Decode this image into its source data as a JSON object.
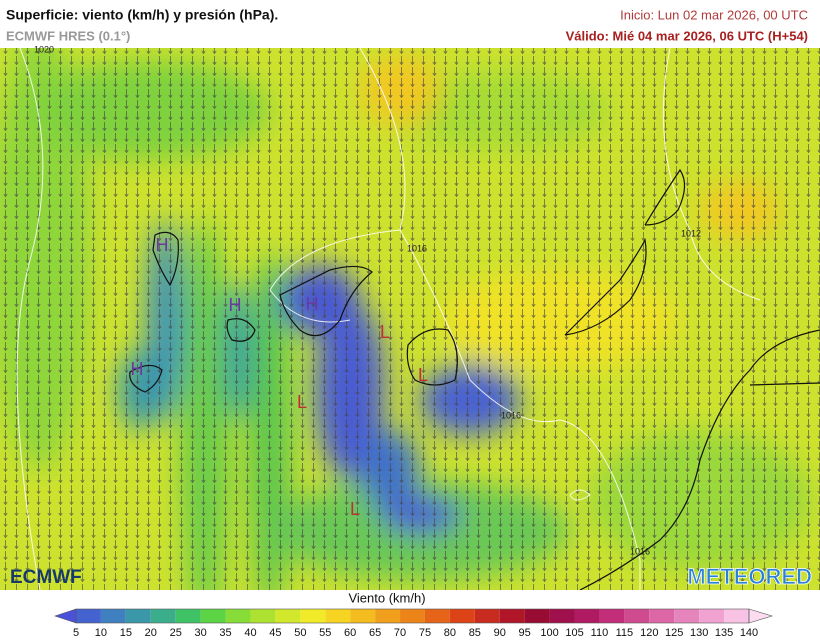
{
  "header": {
    "title": "Superficie: viento (km/h) y presión (hPa).",
    "model": "ECMWF HRES (0.1°)",
    "init": "Inicio: Lun 02 mar 2026, 00 UTC",
    "valid": "Válido: Mié 04 mar 2026, 06 UTC (H+54)"
  },
  "map": {
    "isobars": [
      {
        "label": 1020
      },
      {
        "label": 1016
      },
      {
        "label": 1012
      },
      {
        "label": 1016
      },
      {
        "label": 1016
      }
    ],
    "centers": [
      {
        "label": "H"
      },
      {
        "label": "H"
      },
      {
        "label": "H"
      },
      {
        "label": "H"
      },
      {
        "label": "L"
      },
      {
        "label": "L"
      },
      {
        "label": "L"
      },
      {
        "label": "L"
      }
    ]
  },
  "legend": {
    "title": "Viento (km/h)",
    "ticks": [
      5,
      10,
      15,
      20,
      25,
      30,
      35,
      40,
      45,
      50,
      55,
      60,
      65,
      70,
      75,
      80,
      85,
      90,
      95,
      100,
      105,
      110,
      115,
      120,
      125,
      130,
      135,
      140
    ],
    "under_color": "#4a50d8",
    "colors": [
      "#4563d0",
      "#3f80c0",
      "#3a98a8",
      "#3aae8a",
      "#3fc266",
      "#5cd446",
      "#88dc38",
      "#aee232",
      "#d2e82c",
      "#f0ea28",
      "#f6d422",
      "#f4bc1e",
      "#f0a01c",
      "#ec841a",
      "#e66418",
      "#dc4418",
      "#c82c20",
      "#b01628",
      "#980c34",
      "#a0104c",
      "#b01a62",
      "#c22e7a",
      "#d04a90",
      "#dc66a6",
      "#e684bc",
      "#f0a2d0",
      "#f8c2e4"
    ],
    "over_color": "#fcdcf0"
  },
  "logos": {
    "left": "ECMWF",
    "right": "METEORED"
  }
}
